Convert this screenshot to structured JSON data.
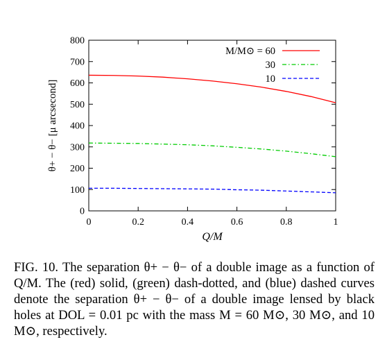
{
  "chart_data": {
    "type": "line",
    "xlabel": "Q/M",
    "ylabel": "θ+ − θ− [μ arcsecond]",
    "xlim": [
      0,
      1
    ],
    "ylim": [
      0,
      800
    ],
    "x_ticks": [
      "0",
      "0.2",
      "0.4",
      "0.6",
      "0.8",
      "1"
    ],
    "y_ticks": [
      "0",
      "100",
      "200",
      "300",
      "400",
      "500",
      "600",
      "700",
      "800"
    ],
    "grid": false,
    "legend_position": "top-right",
    "legend_title": "M/M⊙ =",
    "series": [
      {
        "name": "60",
        "color": "#ff0000",
        "style": "solid",
        "x": [
          0,
          0.1,
          0.2,
          0.3,
          0.4,
          0.5,
          0.6,
          0.7,
          0.8,
          0.9,
          1.0
        ],
        "y": [
          636,
          635,
          632,
          627,
          619,
          609,
          596,
          580,
          560,
          536,
          507
        ]
      },
      {
        "name": "30",
        "color": "#00cc00",
        "style": "dash-dot",
        "x": [
          0,
          0.1,
          0.2,
          0.3,
          0.4,
          0.5,
          0.6,
          0.7,
          0.8,
          0.9,
          1.0
        ],
        "y": [
          318,
          317,
          316,
          313,
          310,
          305,
          298,
          290,
          280,
          268,
          254
        ]
      },
      {
        "name": "10",
        "color": "#0000ff",
        "style": "dashed",
        "x": [
          0,
          0.1,
          0.2,
          0.3,
          0.4,
          0.5,
          0.6,
          0.7,
          0.8,
          0.9,
          1.0
        ],
        "y": [
          106,
          106,
          105,
          104,
          103,
          102,
          99,
          97,
          93,
          89,
          85
        ]
      }
    ]
  },
  "caption": {
    "label": "FIG. 10.",
    "text": "The separation θ+ − θ− of a double image as a function of Q/M. The (red) solid, (green) dash-dotted, and (blue) dashed curves denote the separation θ+ − θ− of a double image lensed by black holes at DOL = 0.01 pc with the mass M = 60 M⊙, 30 M⊙, and 10 M⊙, respectively."
  }
}
